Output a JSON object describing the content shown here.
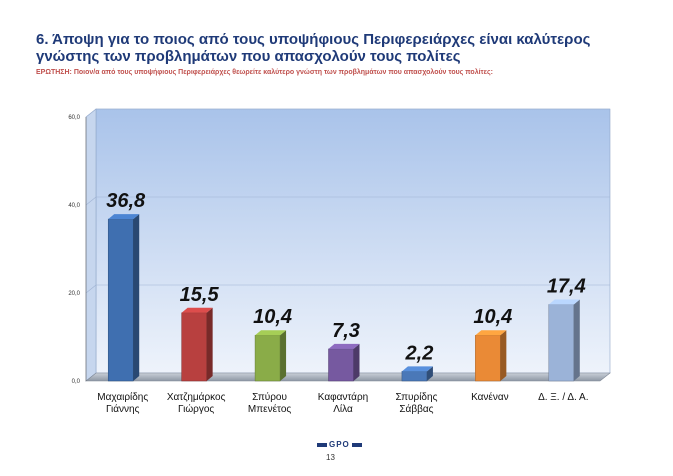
{
  "header": {
    "title": "6. Άποψη για το ποιος από τους υποψήφιους Περιφερειάρχες είναι καλύτερος γνώστης των προβλημάτων που απασχολούν τους πολίτες",
    "question": "ΕΡΩΤΗΣΗ: Ποιον/α από τους υποψήφιους Περιφερειάρχες θεωρείτε καλύτερο γνώστη των προβλημάτων που απασχολούν τους πολίτες:"
  },
  "chart_data": {
    "type": "bar",
    "categories": [
      [
        "Μαχαιρίδης",
        "Γιάννης"
      ],
      [
        "Χατζημάρκος",
        "Γιώργος"
      ],
      [
        "Σπύρου",
        "Μπενέτος"
      ],
      [
        "Καφαντάρη",
        "Λίλα"
      ],
      [
        "Σπυρίδης",
        "Σάββας"
      ],
      [
        "Κανέναν"
      ],
      [
        "Δ. Ξ. / Δ. Α."
      ]
    ],
    "values": [
      36.8,
      15.5,
      10.4,
      7.3,
      2.2,
      10.4,
      17.4
    ],
    "value_labels": [
      "36,8",
      "15,5",
      "10,4",
      "7,3",
      "2,2",
      "10,4",
      "17,4"
    ],
    "colors": [
      "#3f6fb0",
      "#b8403f",
      "#8aac48",
      "#7659a0",
      "#4a78b8",
      "#ea8a36",
      "#9bb3d8"
    ],
    "ylim": [
      0,
      60
    ],
    "yticks": [
      "0,0",
      "20,0",
      "40,0",
      "60,0"
    ],
    "ytick_values": [
      0,
      20,
      40,
      60
    ],
    "grid": true,
    "title": "",
    "xlabel": "",
    "ylabel": ""
  },
  "footer": {
    "logo_text": "GPO",
    "page_number": "13"
  }
}
